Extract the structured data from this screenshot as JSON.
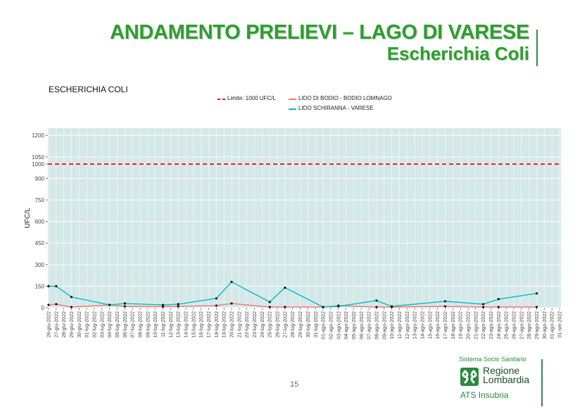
{
  "header": {
    "title": "ANDAMENTO PRELIEVI – LAGO DI VARESE",
    "subtitle": "Escherichia Coli"
  },
  "footer": {
    "page_number": "15"
  },
  "logo": {
    "system_text": "Sistema Socio Sanitario",
    "region_line1": "Regione",
    "region_line2": "Lombardia",
    "agency": "ATS Insubria"
  },
  "colors": {
    "title_green": "#2ca02c",
    "panel_bg": "#d5e8e8",
    "limit": "#ff0000",
    "series_bodio": "#f8766d",
    "series_schiranna": "#00bfc4"
  },
  "chart_data": {
    "type": "line",
    "title": "ESCHERICHIA COLI",
    "ylabel": "UFC/L",
    "ylim": [
      0,
      1250
    ],
    "yticks": [
      0,
      150,
      300,
      450,
      600,
      750,
      900,
      1000,
      1050,
      1200
    ],
    "x_range": [
      "26-giu-2022",
      "01-set-2022"
    ],
    "xticks": [
      "26-giu-2022",
      "27-giu-2022",
      "28-giu-2022",
      "29-giu-2022",
      "30-giu-2022",
      "01-lug-2022",
      "02-lug-2022",
      "03-lug-2022",
      "04-lug-2022",
      "05-lug-2022",
      "06-lug-2022",
      "07-lug-2022",
      "08-lug-2022",
      "09-lug-2022",
      "10-lug-2022",
      "11-lug-2022",
      "12-lug-2022",
      "13-lug-2022",
      "14-lug-2022",
      "15-lug-2022",
      "16-lug-2022",
      "17-lug-2022",
      "18-lug-2022",
      "19-lug-2022",
      "20-lug-2022",
      "21-lug-2022",
      "22-lug-2022",
      "23-lug-2022",
      "24-lug-2022",
      "25-lug-2022",
      "26-lug-2022",
      "27-lug-2022",
      "28-lug-2022",
      "29-lug-2022",
      "30-lug-2022",
      "31-lug-2022",
      "01-ago-2022",
      "02-ago-2022",
      "03-ago-2022",
      "04-ago-2022",
      "05-ago-2022",
      "06-ago-2022",
      "07-ago-2022",
      "08-ago-2022",
      "09-ago-2022",
      "10-ago-2022",
      "11-ago-2022",
      "12-ago-2022",
      "13-ago-2022",
      "14-ago-2022",
      "15-ago-2022",
      "16-ago-2022",
      "17-ago-2022",
      "18-ago-2022",
      "19-ago-2022",
      "20-ago-2022",
      "21-ago-2022",
      "22-ago-2022",
      "23-ago-2022",
      "24-ago-2022",
      "25-ago-2022",
      "26-ago-2022",
      "27-ago-2022",
      "28-ago-2022",
      "29-ago-2022",
      "30-ago-2022",
      "31-ago-2022",
      "01-set-2022"
    ],
    "limit": {
      "label": "Limite: 1000 UFC/L",
      "value": 1000
    },
    "series": [
      {
        "name": "LIDO DI BODIO - BODIO LOMNAGO",
        "points": [
          [
            "26-giu-2022",
            20
          ],
          [
            "27-giu-2022",
            25
          ],
          [
            "29-giu-2022",
            5
          ],
          [
            "04-lug-2022",
            20
          ],
          [
            "06-lug-2022",
            10
          ],
          [
            "11-lug-2022",
            8
          ],
          [
            "13-lug-2022",
            10
          ],
          [
            "18-lug-2022",
            15
          ],
          [
            "20-lug-2022",
            30
          ],
          [
            "25-lug-2022",
            5
          ],
          [
            "27-lug-2022",
            5
          ],
          [
            "01-ago-2022",
            5
          ],
          [
            "03-ago-2022",
            15
          ],
          [
            "08-ago-2022",
            5
          ],
          [
            "10-ago-2022",
            5
          ],
          [
            "17-ago-2022",
            10
          ],
          [
            "22-ago-2022",
            5
          ],
          [
            "24-ago-2022",
            5
          ],
          [
            "29-ago-2022",
            5
          ]
        ]
      },
      {
        "name": "LIDO SCHIRANNA - VARESE",
        "points": [
          [
            "26-giu-2022",
            150
          ],
          [
            "27-giu-2022",
            150
          ],
          [
            "29-giu-2022",
            75
          ],
          [
            "04-lug-2022",
            20
          ],
          [
            "06-lug-2022",
            30
          ],
          [
            "11-lug-2022",
            20
          ],
          [
            "13-lug-2022",
            25
          ],
          [
            "18-lug-2022",
            65
          ],
          [
            "20-lug-2022",
            180
          ],
          [
            "25-lug-2022",
            40
          ],
          [
            "27-lug-2022",
            140
          ],
          [
            "01-ago-2022",
            5
          ],
          [
            "03-ago-2022",
            10
          ],
          [
            "08-ago-2022",
            50
          ],
          [
            "10-ago-2022",
            10
          ],
          [
            "17-ago-2022",
            45
          ],
          [
            "22-ago-2022",
            25
          ],
          [
            "24-ago-2022",
            60
          ],
          [
            "29-ago-2022",
            100
          ]
        ]
      }
    ],
    "grid": true,
    "legend_position": "top"
  }
}
